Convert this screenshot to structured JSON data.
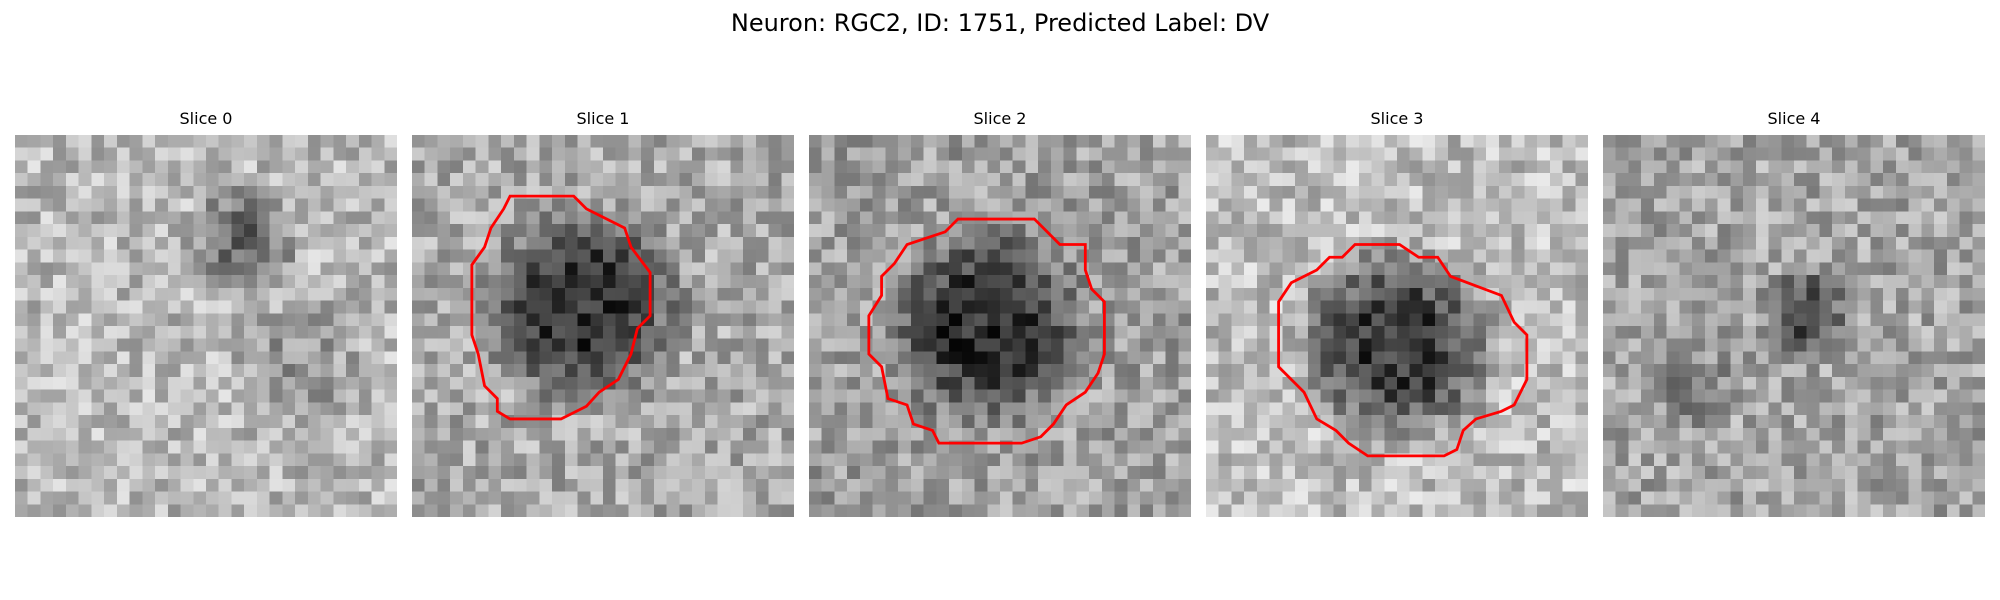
{
  "figure": {
    "title": "Neuron: RGC2, ID: 1751, Predicted Label: DV"
  },
  "panels": [
    {
      "title": "Slice 0"
    },
    {
      "title": "Slice 1"
    },
    {
      "title": "Slice 2"
    },
    {
      "title": "Slice 3"
    },
    {
      "title": "Slice 4"
    }
  ],
  "colors": {
    "contour": "#ff0000",
    "background": "#ffffff"
  }
}
